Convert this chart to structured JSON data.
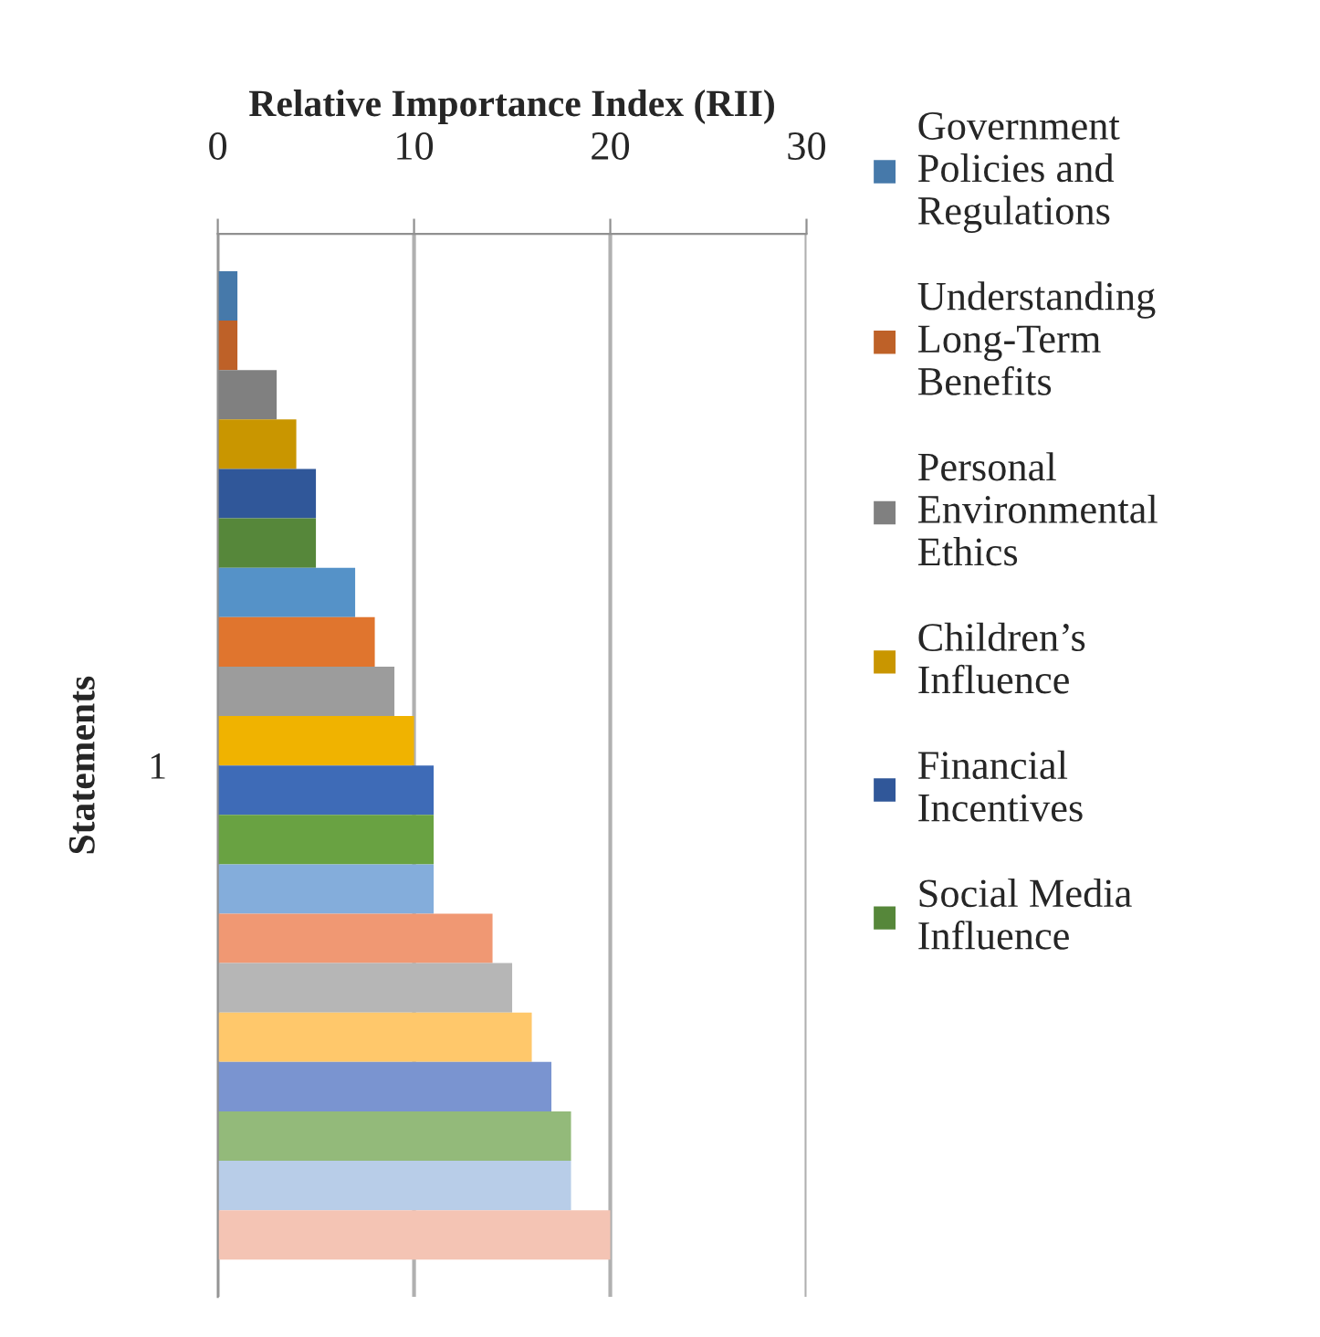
{
  "chart_data": {
    "type": "bar",
    "orientation": "horizontal",
    "xlabel": "Relative Importance Index (RII)",
    "ylabel": "Statements",
    "categories": [
      "1"
    ],
    "xlim": [
      0,
      30
    ],
    "xticks": [
      0,
      10,
      20,
      30
    ],
    "grid": "x",
    "legend": "right",
    "series": [
      {
        "name": "Government Policies and Regulations",
        "color": "#4679AA",
        "values": [
          1
        ]
      },
      {
        "name": "Understanding Long-Term Benefits",
        "color": "#BE6128",
        "values": [
          1
        ]
      },
      {
        "name": "Personal Environmental Ethics",
        "color": "#808080",
        "values": [
          3
        ]
      },
      {
        "name": "Children’s Influence",
        "color": "#C99600",
        "values": [
          4
        ]
      },
      {
        "name": "Financial Incentives",
        "color": "#305799",
        "values": [
          5
        ]
      },
      {
        "name": "Social Media Influence",
        "color": "#56873A",
        "values": [
          5
        ]
      },
      {
        "color": "#5592C8",
        "values": [
          7
        ]
      },
      {
        "color": "#E0752E",
        "values": [
          8
        ]
      },
      {
        "color": "#9C9C9C",
        "values": [
          9
        ]
      },
      {
        "color": "#F0B300",
        "values": [
          10
        ]
      },
      {
        "color": "#3E6BB7",
        "values": [
          11
        ]
      },
      {
        "color": "#69A242",
        "values": [
          11
        ]
      },
      {
        "color": "#84ADDB",
        "values": [
          11
        ]
      },
      {
        "color": "#F09873",
        "values": [
          14
        ]
      },
      {
        "color": "#B6B6B6",
        "values": [
          15
        ]
      },
      {
        "color": "#FFC86B",
        "values": [
          16
        ]
      },
      {
        "color": "#7A94D0",
        "values": [
          17
        ]
      },
      {
        "color": "#93BA7A",
        "values": [
          18
        ]
      },
      {
        "color": "#B8CDE8",
        "values": [
          18
        ]
      },
      {
        "color": "#F4C4B4",
        "values": [
          20
        ]
      }
    ]
  }
}
